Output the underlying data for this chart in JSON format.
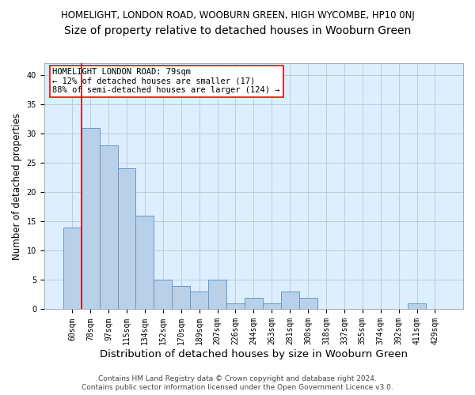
{
  "title": "HOMELIGHT, LONDON ROAD, WOOBURN GREEN, HIGH WYCOMBE, HP10 0NJ",
  "subtitle": "Size of property relative to detached houses in Wooburn Green",
  "xlabel": "Distribution of detached houses by size in Wooburn Green",
  "ylabel": "Number of detached properties",
  "categories": [
    "60sqm",
    "78sqm",
    "97sqm",
    "115sqm",
    "134sqm",
    "152sqm",
    "170sqm",
    "189sqm",
    "207sqm",
    "226sqm",
    "244sqm",
    "263sqm",
    "281sqm",
    "300sqm",
    "318sqm",
    "337sqm",
    "355sqm",
    "374sqm",
    "392sqm",
    "411sqm",
    "429sqm"
  ],
  "values": [
    14,
    31,
    28,
    24,
    16,
    5,
    4,
    3,
    5,
    1,
    2,
    1,
    3,
    2,
    0,
    0,
    0,
    0,
    0,
    1,
    0
  ],
  "bar_color": "#b8d0e8",
  "bar_edge_color": "#6699cc",
  "background_color": "#ffffff",
  "plot_bg_color": "#ddeeff",
  "grid_color": "#bbccdd",
  "annotation_line_color": "#cc0000",
  "annotation_box_text": "HOMELIGHT LONDON ROAD: 79sqm\n← 12% of detached houses are smaller (17)\n88% of semi-detached houses are larger (124) →",
  "ylim": [
    0,
    42
  ],
  "yticks": [
    0,
    5,
    10,
    15,
    20,
    25,
    30,
    35,
    40
  ],
  "footnote1": "Contains HM Land Registry data © Crown copyright and database right 2024.",
  "footnote2": "Contains public sector information licensed under the Open Government Licence v3.0.",
  "title_fontsize": 8.5,
  "subtitle_fontsize": 10,
  "xlabel_fontsize": 9.5,
  "ylabel_fontsize": 8.5,
  "tick_fontsize": 7,
  "annotation_fontsize": 7.5,
  "footnote_fontsize": 6.5
}
